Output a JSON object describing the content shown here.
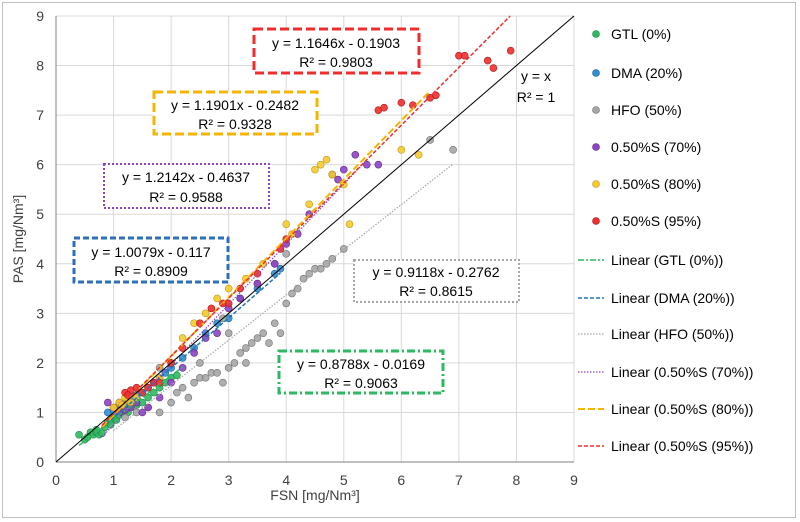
{
  "chart_data": {
    "type": "scatter",
    "xlabel": "FSN [mg/Nm³]",
    "ylabel": "PAS [mg/Nm³]",
    "xlim": [
      0,
      9
    ],
    "ylim": [
      0,
      9
    ],
    "xticks": [
      "0",
      "1",
      "2",
      "3",
      "4",
      "5",
      "6",
      "7",
      "8",
      "9"
    ],
    "yticks": [
      "0",
      "1",
      "2",
      "3",
      "4",
      "5",
      "6",
      "7",
      "8",
      "9"
    ],
    "grid": true,
    "legend_position": "right",
    "colors": {
      "gtl": "#2fb860",
      "dma": "#2e8fd6",
      "hfo": "#a6a6a6",
      "s70": "#8e44c4",
      "s80": "#f5cc2a",
      "s95": "#ef2d2d",
      "identity": "#000000"
    },
    "series": [
      {
        "key": "gtl",
        "name": "GTL (0%)",
        "fit_name": "Linear (GTL (0%))",
        "slope": 0.8788,
        "intercept": -0.0169,
        "fit_range": [
          0.4,
          2.2
        ],
        "equation": "y = 0.8788x - 0.0169",
        "r2": "R² = 0.9063",
        "points": [
          [
            0.4,
            0.55
          ],
          [
            0.5,
            0.45
          ],
          [
            0.6,
            0.6
          ],
          [
            0.65,
            0.55
          ],
          [
            0.7,
            0.6
          ],
          [
            0.75,
            0.55
          ],
          [
            0.8,
            0.58
          ],
          [
            0.85,
            0.7
          ],
          [
            0.9,
            0.8
          ],
          [
            0.95,
            0.85
          ],
          [
            1.0,
            0.9
          ],
          [
            1.05,
            0.85
          ],
          [
            1.1,
            0.95
          ],
          [
            1.15,
            1.0
          ],
          [
            1.2,
            1.05
          ],
          [
            1.3,
            1.1
          ],
          [
            1.4,
            1.15
          ],
          [
            1.5,
            1.2
          ],
          [
            1.6,
            1.3
          ],
          [
            1.7,
            1.4
          ],
          [
            1.8,
            1.5
          ],
          [
            1.9,
            1.6
          ],
          [
            2.0,
            1.7
          ],
          [
            2.1,
            1.75
          ],
          [
            0.55,
            0.5
          ],
          [
            0.7,
            0.65
          ],
          [
            0.95,
            0.75
          ],
          [
            1.25,
            1.0
          ]
        ]
      },
      {
        "key": "dma",
        "name": "DMA (20%)",
        "fit_name": "Linear (DMA (20%))",
        "slope": 1.0079,
        "intercept": -0.117,
        "fit_range": [
          0.8,
          3.9
        ],
        "equation": "y = 1.0079x - 0.117",
        "r2": "R² = 0.8909",
        "points": [
          [
            0.9,
            1.0
          ],
          [
            1.0,
            1.05
          ],
          [
            1.05,
            1.1
          ],
          [
            1.1,
            1.15
          ],
          [
            1.2,
            1.2
          ],
          [
            1.25,
            1.3
          ],
          [
            1.3,
            1.2
          ],
          [
            1.4,
            1.35
          ],
          [
            1.5,
            1.4
          ],
          [
            1.6,
            1.5
          ],
          [
            1.7,
            1.6
          ],
          [
            1.8,
            1.7
          ],
          [
            1.9,
            1.8
          ],
          [
            2.0,
            1.9
          ],
          [
            2.2,
            2.1
          ],
          [
            2.4,
            2.3
          ],
          [
            2.6,
            2.6
          ],
          [
            2.8,
            2.8
          ],
          [
            3.0,
            2.9
          ],
          [
            3.2,
            3.3
          ],
          [
            3.5,
            3.5
          ],
          [
            3.8,
            3.8
          ],
          [
            3.9,
            3.9
          ],
          [
            1.15,
            1.05
          ],
          [
            1.35,
            1.25
          ]
        ]
      },
      {
        "key": "hfo",
        "name": "HFO (50%)",
        "fit_name": "Linear (HFO (50%))",
        "slope": 0.9118,
        "intercept": -0.2762,
        "fit_range": [
          1.0,
          6.9
        ],
        "equation": "y = 0.9118x - 0.2762",
        "r2": "R² = 0.8615",
        "points": [
          [
            1.2,
            0.9
          ],
          [
            1.4,
            1.0
          ],
          [
            1.6,
            1.1
          ],
          [
            1.8,
            1.0
          ],
          [
            2.0,
            1.2
          ],
          [
            2.1,
            1.4
          ],
          [
            2.2,
            1.5
          ],
          [
            2.3,
            1.3
          ],
          [
            2.4,
            1.6
          ],
          [
            2.5,
            1.7
          ],
          [
            2.6,
            1.7
          ],
          [
            2.7,
            1.8
          ],
          [
            2.8,
            1.8
          ],
          [
            2.9,
            1.6
          ],
          [
            3.0,
            1.9
          ],
          [
            3.1,
            2.0
          ],
          [
            3.2,
            2.2
          ],
          [
            3.3,
            2.3
          ],
          [
            3.4,
            2.4
          ],
          [
            3.5,
            2.5
          ],
          [
            3.6,
            2.6
          ],
          [
            3.7,
            2.4
          ],
          [
            3.8,
            2.8
          ],
          [
            3.9,
            2.6
          ],
          [
            4.0,
            3.2
          ],
          [
            4.1,
            3.4
          ],
          [
            4.2,
            3.5
          ],
          [
            4.3,
            3.7
          ],
          [
            4.4,
            3.8
          ],
          [
            4.5,
            3.9
          ],
          [
            4.6,
            3.9
          ],
          [
            4.8,
            4.1
          ],
          [
            5.0,
            4.3
          ],
          [
            3.8,
            4.0
          ],
          [
            4.0,
            4.2
          ],
          [
            3.5,
            3.6
          ],
          [
            6.5,
            6.5
          ],
          [
            6.9,
            6.3
          ],
          [
            2.9,
            2.9
          ],
          [
            3.0,
            2.6
          ],
          [
            3.3,
            2.0
          ],
          [
            2.5,
            2.0
          ],
          [
            1.8,
            1.9
          ],
          [
            4.7,
            4.0
          ]
        ]
      },
      {
        "key": "s70",
        "name": "0.50%S (70%)",
        "fit_name": "Linear (0.50%S (70%))",
        "slope": 1.2142,
        "intercept": -0.4637,
        "fit_range": [
          0.8,
          5.4
        ],
        "equation": "y = 1.2142x - 0.4637",
        "r2": "R² = 0.9588",
        "points": [
          [
            0.9,
            1.2
          ],
          [
            1.0,
            1.1
          ],
          [
            1.1,
            1.0
          ],
          [
            1.2,
            1.05
          ],
          [
            1.3,
            1.1
          ],
          [
            1.4,
            1.2
          ],
          [
            1.5,
            1.0
          ],
          [
            1.6,
            1.1
          ],
          [
            1.8,
            1.3
          ],
          [
            2.0,
            1.6
          ],
          [
            2.2,
            1.9
          ],
          [
            2.4,
            2.2
          ],
          [
            2.6,
            2.5
          ],
          [
            2.8,
            2.6
          ],
          [
            3.0,
            3.1
          ],
          [
            3.2,
            3.3
          ],
          [
            3.5,
            3.6
          ],
          [
            3.8,
            4.0
          ],
          [
            4.0,
            4.4
          ],
          [
            4.2,
            4.6
          ],
          [
            4.4,
            5.0
          ],
          [
            4.8,
            5.8
          ],
          [
            5.0,
            5.9
          ],
          [
            5.2,
            6.2
          ],
          [
            5.4,
            6.0
          ],
          [
            5.6,
            6.0
          ],
          [
            4.9,
            5.7
          ],
          [
            1.1,
            1.2
          ]
        ]
      },
      {
        "key": "s80",
        "name": "0.50%S (80%)",
        "fit_name": "Linear (0.50%S (80%))",
        "slope": 1.1901,
        "intercept": -0.2482,
        "fit_range": [
          0.8,
          6.5
        ],
        "equation": "y = 1.1901x - 0.2482",
        "r2": "R² = 0.9328",
        "points": [
          [
            1.0,
            1.1
          ],
          [
            1.1,
            1.2
          ],
          [
            1.2,
            1.3
          ],
          [
            1.3,
            1.2
          ],
          [
            1.4,
            1.3
          ],
          [
            1.5,
            1.4
          ],
          [
            1.6,
            1.5
          ],
          [
            1.8,
            1.7
          ],
          [
            2.0,
            2.0
          ],
          [
            2.2,
            2.5
          ],
          [
            2.4,
            2.8
          ],
          [
            2.6,
            3.0
          ],
          [
            2.8,
            3.3
          ],
          [
            3.0,
            3.5
          ],
          [
            3.3,
            3.7
          ],
          [
            3.6,
            4.0
          ],
          [
            4.0,
            4.8
          ],
          [
            4.1,
            4.6
          ],
          [
            4.4,
            5.2
          ],
          [
            4.5,
            5.9
          ],
          [
            4.6,
            6.0
          ],
          [
            4.7,
            6.1
          ],
          [
            4.8,
            5.8
          ],
          [
            5.0,
            5.6
          ],
          [
            5.1,
            4.8
          ],
          [
            6.0,
            6.3
          ],
          [
            6.3,
            6.2
          ],
          [
            1.15,
            1.15
          ]
        ]
      },
      {
        "key": "s95",
        "name": "0.50%S (95%)",
        "fit_name": "Linear (0.50%S (95%))",
        "slope": 1.1646,
        "intercept": -0.1903,
        "fit_range": [
          0.8,
          7.9
        ],
        "equation": "y = 1.1646x - 0.1903",
        "r2": "R² = 0.9803",
        "points": [
          [
            1.2,
            1.4
          ],
          [
            1.3,
            1.45
          ],
          [
            1.4,
            1.5
          ],
          [
            1.5,
            1.4
          ],
          [
            1.6,
            1.5
          ],
          [
            1.7,
            1.6
          ],
          [
            1.8,
            1.6
          ],
          [
            2.0,
            2.0
          ],
          [
            2.2,
            2.3
          ],
          [
            2.5,
            2.8
          ],
          [
            2.7,
            3.1
          ],
          [
            2.9,
            3.2
          ],
          [
            3.0,
            3.2
          ],
          [
            3.2,
            3.5
          ],
          [
            3.5,
            3.8
          ],
          [
            3.9,
            4.3
          ],
          [
            4.0,
            4.5
          ],
          [
            5.6,
            7.1
          ],
          [
            5.7,
            7.15
          ],
          [
            6.0,
            7.25
          ],
          [
            6.2,
            7.2
          ],
          [
            6.5,
            7.35
          ],
          [
            6.6,
            7.4
          ],
          [
            7.0,
            8.2
          ],
          [
            7.1,
            8.2
          ],
          [
            7.5,
            8.1
          ],
          [
            7.6,
            7.95
          ],
          [
            7.9,
            8.3
          ],
          [
            6.2,
            7.95
          ],
          [
            1.25,
            1.35
          ]
        ]
      }
    ],
    "identity": {
      "equation": "y = x",
      "r2": "R² = 1"
    }
  }
}
